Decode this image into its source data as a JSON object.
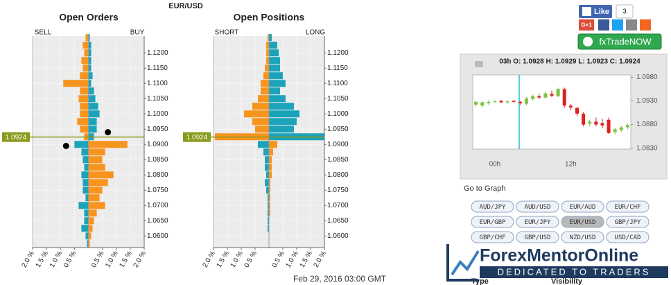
{
  "header": {
    "pair": "EUR/USD"
  },
  "footer": {
    "timestamp": "Feb 29, 2016 03:00 GMT"
  },
  "social": {
    "like": "Like",
    "like_count": 3,
    "gplus": "G+1",
    "trade_button": "fxTradeNOW"
  },
  "quote": "03h O: 1.0928 H: 1.0929 L: 1.0923 C: 1.0924",
  "goto": {
    "title": "Go to Graph",
    "pairs": [
      "AUD/JPY",
      "AUD/USD",
      "EUR/AUD",
      "EUR/CHF",
      "EUR/GBP",
      "EUR/JPY",
      "EUR/USD",
      "GBP/JPY",
      "GBP/CHF",
      "GBP/USD",
      "NZD/USD",
      "USD/CAD"
    ],
    "selected": 6
  },
  "watermark": {
    "brand": "ForexMentorOnline",
    "tagline": "DEDICATED TO TRADERS"
  },
  "table_header": [
    "Type",
    "Visibility"
  ],
  "chart_data": [
    {
      "type": "butterfly",
      "title": "Open Orders",
      "current_price": 1.0924,
      "grid": true,
      "y": [
        1.125,
        1.1225,
        1.12,
        1.1175,
        1.115,
        1.1125,
        1.11,
        1.1075,
        1.105,
        1.1025,
        1.1,
        1.0975,
        1.095,
        1.0925,
        1.09,
        1.0875,
        1.085,
        1.0825,
        1.08,
        1.0775,
        1.075,
        1.0725,
        1.07,
        1.0675,
        1.065,
        1.0625,
        1.06,
        1.0575
      ],
      "series": [
        {
          "name": "SELL",
          "color": "#f7941d",
          "values": [
            0.1,
            0.2,
            0.15,
            0.25,
            0.2,
            0.3,
            0.9,
            0.3,
            0.35,
            0.3,
            0.3,
            0.4,
            0.3,
            0.15,
            0.5,
            0.25,
            0.2,
            0.15,
            0.25,
            0.2,
            0.2,
            0.1,
            0.35,
            0.15,
            0.15,
            0.25,
            0.1,
            0.05
          ]
        },
        {
          "name": "BUY",
          "color": "#1ba3b9",
          "values": [
            0.05,
            0.1,
            0.1,
            0.1,
            0.1,
            0.15,
            0.1,
            0.2,
            0.25,
            0.35,
            0.4,
            0.3,
            0.3,
            0.2,
            1.4,
            0.6,
            0.5,
            0.6,
            0.9,
            0.7,
            0.5,
            0.4,
            0.6,
            0.3,
            0.2,
            0.15,
            0.1,
            0.05
          ]
        }
      ],
      "markers": [
        {
          "x": 0.7,
          "y": 1.094
        },
        {
          "x": -0.8,
          "y": 1.0895
        }
      ],
      "xlim": [
        -2,
        2
      ],
      "xticks": [
        {
          "value": -2,
          "label": "2.0 %"
        },
        {
          "value": -1.5,
          "label": "1.5 %"
        },
        {
          "value": -1,
          "label": "1.0 %"
        },
        {
          "value": -0.5,
          "label": "0.5 %"
        },
        {
          "value": 0.5,
          "label": "0.5 %"
        },
        {
          "value": 1,
          "label": "1.0 %"
        },
        {
          "value": 1.5,
          "label": "1.5 %"
        },
        {
          "value": 2,
          "label": "2.0 %"
        }
      ],
      "ylim": [
        1.0562,
        1.1255
      ],
      "yticks": [
        {
          "value": 1.06,
          "label": "1.0600"
        },
        {
          "value": 1.065,
          "label": "1.0650"
        },
        {
          "value": 1.07,
          "label": "1.0700"
        },
        {
          "value": 1.075,
          "label": "1.0750"
        },
        {
          "value": 1.08,
          "label": "1.0800"
        },
        {
          "value": 1.085,
          "label": "1.0850"
        },
        {
          "value": 1.09,
          "label": "1.0900"
        },
        {
          "value": 1.095,
          "label": "1.0950"
        },
        {
          "value": 1.1,
          "label": "1.1000"
        },
        {
          "value": 1.105,
          "label": "1.1050"
        },
        {
          "value": 1.11,
          "label": "1.1100"
        },
        {
          "value": 1.115,
          "label": "1.1150"
        },
        {
          "value": 1.12,
          "label": "1.1200"
        }
      ]
    },
    {
      "type": "butterfly",
      "title": "Open Positions",
      "current_price": 1.0924,
      "grid": true,
      "y": [
        1.125,
        1.1225,
        1.12,
        1.1175,
        1.115,
        1.1125,
        1.11,
        1.1075,
        1.105,
        1.1025,
        1.1,
        1.0975,
        1.095,
        1.0925,
        1.09,
        1.0875,
        1.085,
        1.0825,
        1.08,
        1.0775,
        1.075,
        1.0725,
        1.07,
        1.0675,
        1.065,
        1.0625,
        1.06,
        1.0575
      ],
      "series": [
        {
          "name": "SHORT",
          "color": "#f7941d",
          "values": [
            0.05,
            0.1,
            0.1,
            0.1,
            0.15,
            0.2,
            0.3,
            0.3,
            0.4,
            0.6,
            0.9,
            0.6,
            0.5,
            1.95,
            0.4,
            0.2,
            0.15,
            0.15,
            0.1,
            0.15,
            0.1,
            0.05,
            0.05,
            0.05,
            0.05,
            0.05,
            0,
            0
          ]
        },
        {
          "name": "LONG",
          "color": "#1ba3b9",
          "values": [
            0.1,
            0.3,
            0.35,
            0.4,
            0.4,
            0.5,
            0.6,
            0.4,
            0.6,
            0.9,
            1.1,
            1.0,
            0.9,
            2.0,
            0.3,
            0.15,
            0.1,
            0.1,
            0.1,
            0.05,
            0.05,
            0.05,
            0.05,
            0.05,
            0,
            0,
            0,
            0
          ]
        }
      ],
      "xlim": [
        -2,
        2
      ],
      "xticks": [
        {
          "value": -2,
          "label": "2.0 %"
        },
        {
          "value": -1.5,
          "label": "1.5 %"
        },
        {
          "value": -1,
          "label": "1.0 %"
        },
        {
          "value": -0.5,
          "label": "0.5 %"
        },
        {
          "value": 0.5,
          "label": "0.5 %"
        },
        {
          "value": 1,
          "label": "1.0 %"
        },
        {
          "value": 1.5,
          "label": "1.5 %"
        },
        {
          "value": 2,
          "label": "2.0 %"
        }
      ],
      "ylim": [
        1.0562,
        1.1255
      ],
      "yticks": [
        {
          "value": 1.06,
          "label": "1.0600"
        },
        {
          "value": 1.065,
          "label": "1.0650"
        },
        {
          "value": 1.07,
          "label": "1.0700"
        },
        {
          "value": 1.075,
          "label": "1.0750"
        },
        {
          "value": 1.08,
          "label": "1.0800"
        },
        {
          "value": 1.085,
          "label": "1.0850"
        },
        {
          "value": 1.09,
          "label": "1.0900"
        },
        {
          "value": 1.095,
          "label": "1.0950"
        },
        {
          "value": 1.1,
          "label": "1.1000"
        },
        {
          "value": 1.105,
          "label": "1.1050"
        },
        {
          "value": 1.11,
          "label": "1.1100"
        },
        {
          "value": 1.115,
          "label": "1.1150"
        },
        {
          "value": 1.12,
          "label": "1.1200"
        }
      ]
    },
    {
      "type": "candlestick",
      "up_color": "#7cc242",
      "down_color": "#e02020",
      "categories": [
        null,
        null,
        null,
        "00h",
        null,
        null,
        null,
        null,
        null,
        null,
        null,
        null,
        null,
        null,
        null,
        "12h",
        null,
        null,
        null,
        null,
        null,
        null,
        null,
        null,
        null
      ],
      "open": [
        1.0922,
        1.092,
        1.0925,
        1.0928,
        1.093,
        1.0927,
        1.093,
        1.0928,
        1.0924,
        1.0934,
        1.094,
        1.0937,
        1.0945,
        1.094,
        1.0955,
        1.092,
        1.0915,
        1.0903,
        1.0882,
        1.0886,
        1.0883,
        1.089,
        1.0864,
        1.0868,
        1.0874
      ],
      "high": [
        1.093,
        1.093,
        1.0931,
        1.0931,
        1.0932,
        1.0931,
        1.0932,
        1.093,
        1.0938,
        1.0943,
        1.0945,
        1.095,
        1.0952,
        1.0958,
        1.0958,
        1.0924,
        1.0918,
        1.0906,
        1.089,
        1.0895,
        1.0892,
        1.0895,
        1.0873,
        1.0877,
        1.0882
      ],
      "low": [
        1.0918,
        1.0916,
        1.0922,
        1.0925,
        1.0925,
        1.0924,
        1.0926,
        1.0922,
        1.092,
        1.093,
        1.0934,
        1.0935,
        1.0938,
        1.0938,
        1.0915,
        1.091,
        1.0898,
        1.0876,
        1.0876,
        1.0876,
        1.0872,
        1.086,
        1.0859,
        1.0864,
        1.087
      ],
      "close": [
        1.0928,
        1.0927,
        1.0928,
        1.0929,
        1.0927,
        1.0929,
        1.0928,
        1.0925,
        1.0935,
        1.094,
        1.0937,
        1.0946,
        1.0941,
        1.0955,
        1.092,
        1.0916,
        1.0903,
        1.088,
        1.0886,
        1.088,
        1.0878,
        1.0862,
        1.087,
        1.0874,
        1.0879
      ],
      "ylim": [
        1.0828,
        1.0985
      ],
      "yticks": [
        {
          "value": 1.083,
          "label": "1.0830"
        },
        {
          "value": 1.088,
          "label": "1.0880"
        },
        {
          "value": 1.093,
          "label": "1.0930"
        },
        {
          "value": 1.098,
          "label": "1.0980"
        }
      ]
    }
  ]
}
